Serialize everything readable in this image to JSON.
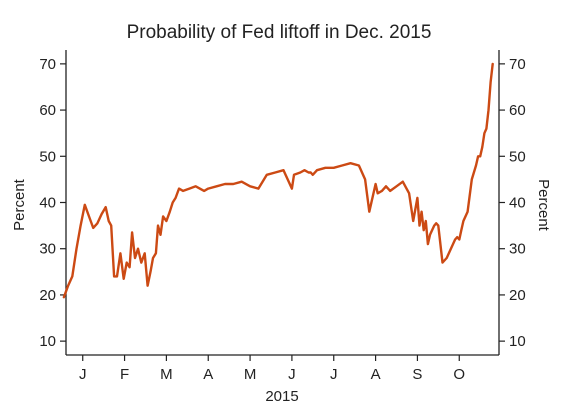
{
  "chart_data": {
    "type": "line",
    "title": "Probability of Fed liftoff in Dec. 2015",
    "xlabel": "2015",
    "ylabel": "Percent",
    "ylabel_right": "Percent",
    "ylim": [
      7,
      73
    ],
    "yticks": [
      10,
      20,
      30,
      40,
      50,
      60,
      70
    ],
    "x_unit": "month of 2015",
    "xlim": [
      0.6,
      10.95
    ],
    "month_ticks": [
      {
        "label": "J",
        "x": 1
      },
      {
        "label": "F",
        "x": 2
      },
      {
        "label": "M",
        "x": 3
      },
      {
        "label": "A",
        "x": 4
      },
      {
        "label": "M",
        "x": 5
      },
      {
        "label": "J",
        "x": 6
      },
      {
        "label": "J",
        "x": 7
      },
      {
        "label": "A",
        "x": 8
      },
      {
        "label": "S",
        "x": 9
      },
      {
        "label": "O",
        "x": 10
      }
    ],
    "line_color": "#cc4a14",
    "series": [
      {
        "x": [
          0.55,
          0.65,
          0.75,
          0.85,
          0.95,
          1.05,
          1.15,
          1.25,
          1.35,
          1.45,
          1.55,
          1.62,
          1.68,
          1.75,
          1.82,
          1.9,
          1.98,
          2.05,
          2.12,
          2.18,
          2.25,
          2.32,
          2.4,
          2.48,
          2.55,
          2.62,
          2.68,
          2.75,
          2.8,
          2.86,
          2.92,
          3.0,
          3.08,
          3.15,
          3.22,
          3.3,
          3.4,
          3.55,
          3.7,
          3.9,
          4.0,
          4.2,
          4.4,
          4.6,
          4.8,
          5.0,
          5.2,
          5.4,
          5.6,
          5.8,
          6.0,
          6.05,
          6.2,
          6.3,
          6.4,
          6.45,
          6.5,
          6.6,
          6.8,
          7.0,
          7.2,
          7.4,
          7.6,
          7.75,
          7.85,
          8.0,
          8.05,
          8.15,
          8.25,
          8.35,
          8.5,
          8.65,
          8.8,
          8.9,
          9.0,
          9.05,
          9.1,
          9.15,
          9.2,
          9.25,
          9.3,
          9.4,
          9.45,
          9.5,
          9.6,
          9.7,
          9.8,
          9.9,
          9.95,
          10.0,
          10.05,
          10.1,
          10.2,
          10.3,
          10.4,
          10.45,
          10.5,
          10.55,
          10.6,
          10.65,
          10.7,
          10.75,
          10.8
        ],
        "y": [
          19.5,
          22,
          24,
          30,
          35,
          39.5,
          37,
          34.5,
          35.5,
          37.5,
          39,
          36,
          35,
          24,
          24,
          29,
          23.5,
          27,
          26,
          33.5,
          28,
          30,
          27,
          29,
          22,
          25,
          28,
          29,
          35,
          33,
          37,
          36,
          38,
          40,
          41,
          43,
          42.5,
          43,
          43.5,
          42.5,
          43,
          43.5,
          44,
          44,
          44.5,
          43.5,
          43,
          46,
          46.5,
          47,
          43,
          46,
          46.5,
          47,
          46.5,
          46.5,
          46,
          47,
          47.5,
          47.5,
          48,
          48.5,
          48,
          45,
          38,
          44,
          42,
          42.5,
          43.5,
          42.5,
          43.5,
          44.5,
          42,
          36,
          41,
          35,
          38,
          34,
          36,
          31,
          33,
          35,
          35.5,
          35,
          27,
          28,
          30,
          32,
          32.5,
          32,
          34,
          36,
          38,
          45,
          48,
          50,
          50,
          52,
          55,
          56,
          60,
          66,
          70
        ]
      }
    ]
  }
}
